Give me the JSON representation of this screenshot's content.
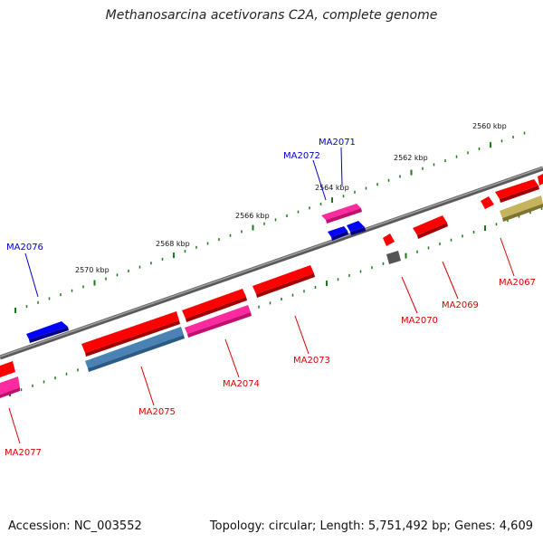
{
  "title": "Methanosarcina acetivorans C2A, complete genome",
  "footer": {
    "accession": "Accession: NC_003552",
    "summary": "Topology: circular; Length: 5,751,492 bp; Genes: 4,609"
  },
  "colors": {
    "backbone": "#8a8a8a",
    "tick": "#1a7a1a",
    "label_plus": "#0000cc",
    "label_minus": "#dd0000",
    "red": "#ff0000",
    "magenta": "#ff1493",
    "blue": "#0000ff",
    "steelblue": "#4a82b4",
    "khaki": "#b8a850",
    "gray": "#606060"
  },
  "ticks": [
    {
      "kbp": 2560,
      "label": "2560 kbp"
    },
    {
      "kbp": 2562,
      "label": "2562 kbp"
    },
    {
      "kbp": 2564,
      "label": "2564 kbp"
    },
    {
      "kbp": 2566,
      "label": "2566 kbp"
    },
    {
      "kbp": 2568,
      "label": "2568 kbp"
    },
    {
      "kbp": 2570,
      "label": "2570 kbp"
    }
  ],
  "genes": [
    {
      "name": "MA2071",
      "strand": "+",
      "color": "blue"
    },
    {
      "name": "MA2072",
      "strand": "+",
      "color": "blue"
    },
    {
      "name": "MA2076",
      "strand": "+",
      "color": "blue"
    },
    {
      "name": "MA2067",
      "strand": "-",
      "color": "red"
    },
    {
      "name": "MA2069",
      "strand": "-",
      "color": "red"
    },
    {
      "name": "MA2070",
      "strand": "-",
      "color": "red"
    },
    {
      "name": "MA2073",
      "strand": "-",
      "color": "red"
    },
    {
      "name": "MA2074",
      "strand": "-",
      "color": "red"
    },
    {
      "name": "MA2075",
      "strand": "-",
      "color": "red"
    },
    {
      "name": "MA2077",
      "strand": "-",
      "color": "red"
    }
  ]
}
